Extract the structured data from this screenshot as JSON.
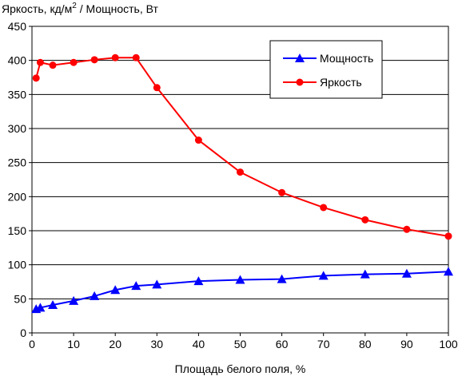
{
  "chart_data": {
    "type": "line",
    "ylabel_main": "Яркость, кд/м",
    "ylabel_sup": "2",
    "ylabel_rest": " / Мощность, Вт",
    "xlabel": "Площадь белого поля, %",
    "xlim": [
      0,
      100
    ],
    "ylim": [
      0,
      450
    ],
    "x_ticks": [
      "0",
      "10",
      "20",
      "30",
      "40",
      "50",
      "60",
      "70",
      "80",
      "90",
      "100"
    ],
    "y_ticks": [
      "0",
      "50",
      "100",
      "150",
      "200",
      "250",
      "300",
      "350",
      "400",
      "450"
    ],
    "grid": "horizontal",
    "legend_position": "top-right",
    "series": [
      {
        "name": "Мощность",
        "color": "#0000ff",
        "marker": "triangle",
        "x": [
          1,
          2,
          5,
          10,
          15,
          20,
          25,
          30,
          40,
          50,
          60,
          70,
          80,
          90,
          100
        ],
        "y": [
          35,
          37,
          41,
          47,
          54,
          63,
          69,
          71,
          76,
          78,
          79,
          84,
          86,
          87,
          90
        ]
      },
      {
        "name": "Яркость",
        "color": "#ff0000",
        "marker": "circle",
        "x": [
          1,
          2,
          5,
          10,
          15,
          20,
          25,
          30,
          40,
          50,
          60,
          70,
          80,
          90,
          100
        ],
        "y": [
          374,
          397,
          393,
          397,
          401,
          404,
          404,
          360,
          283,
          236,
          206,
          184,
          166,
          152,
          142
        ]
      }
    ]
  }
}
